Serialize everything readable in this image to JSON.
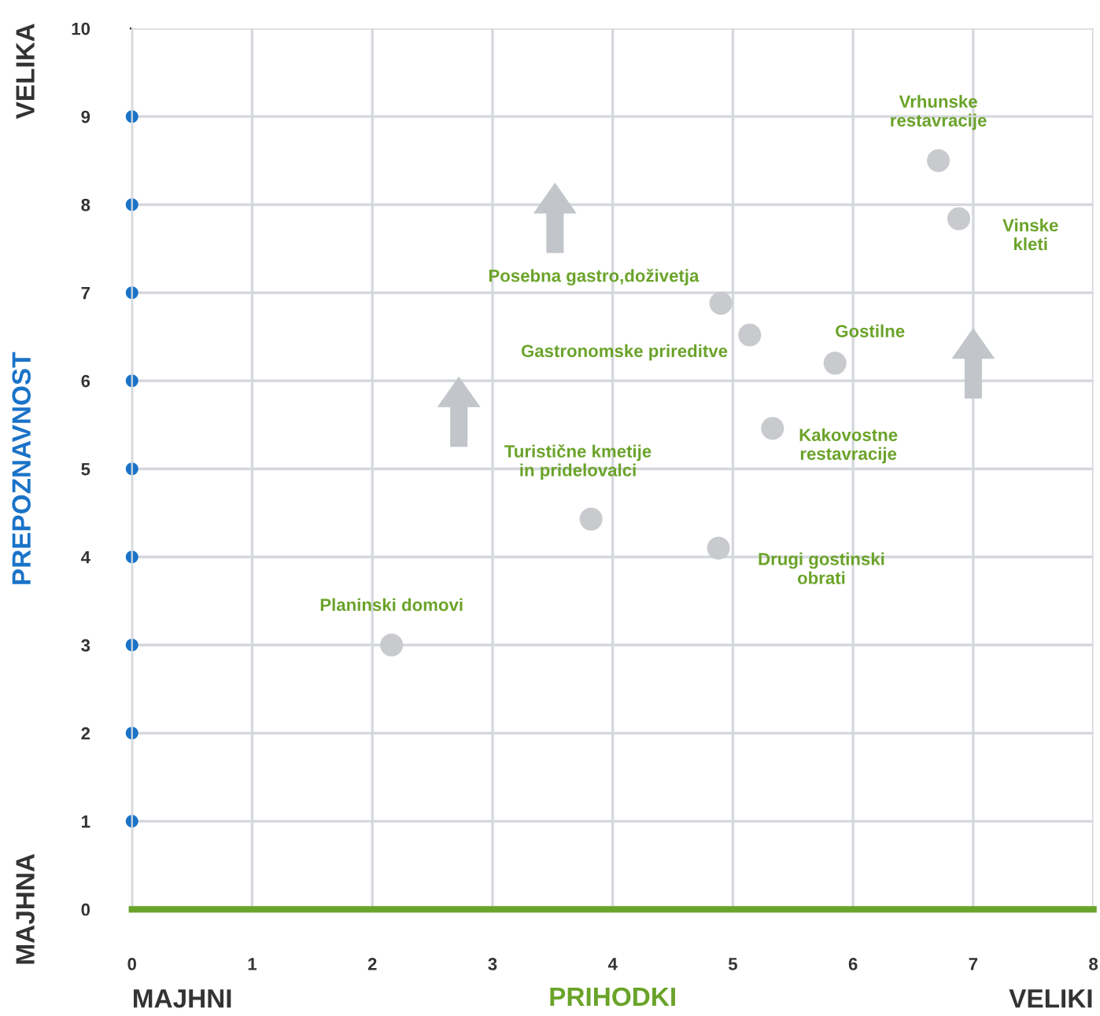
{
  "chart_data": {
    "type": "scatter",
    "xlabel": "PRIHODKI",
    "ylabel": "PREPOZNAVNOST",
    "x": [
      6.71,
      6.88,
      4.9,
      5.14,
      5.85,
      5.33,
      3.82,
      4.88,
      2.16
    ],
    "series": [
      {
        "color": "#c8cacd",
        "values": [
          8.5,
          7.84,
          6.88,
          6.52,
          6.2,
          5.46,
          4.43,
          4.1,
          3.0
        ]
      }
    ],
    "xlim": [
      0,
      8
    ],
    "ylim": [
      0,
      10
    ],
    "xticks": [
      0,
      1,
      2,
      3,
      4,
      5,
      6,
      7,
      8
    ],
    "yticks": [
      0,
      1,
      2,
      3,
      4,
      5,
      6,
      7,
      8,
      9,
      10
    ],
    "grid": true,
    "marker": "circle",
    "annotations": [
      "VELIKA",
      "MAJHNA",
      "MAJHNI",
      "VELIKI",
      {
        "text": "Vrhunske\nrestavracije",
        "x": 6.71,
        "y": 8.5
      },
      {
        "text": "Vinske\nkleti",
        "x": 6.88,
        "y": 7.84
      },
      {
        "text": "Posebna gastro,doživetja",
        "x": 4.9,
        "y": 6.88
      },
      {
        "text": "Gastronomske prireditve",
        "x": 5.14,
        "y": 6.52
      },
      {
        "text": "Gostilne",
        "x": 5.85,
        "y": 6.2
      },
      {
        "text": "Kakovostne\nrestavracije",
        "x": 5.33,
        "y": 5.46
      },
      {
        "text": "Turistične kmetije\nin pridelovalci",
        "x": 3.82,
        "y": 4.43
      },
      {
        "text": "Drugi gostinski\nobrati",
        "x": 4.88,
        "y": 4.1
      },
      {
        "text": "Planinski domovi",
        "x": 2.16,
        "y": 3.0
      }
    ]
  }
}
